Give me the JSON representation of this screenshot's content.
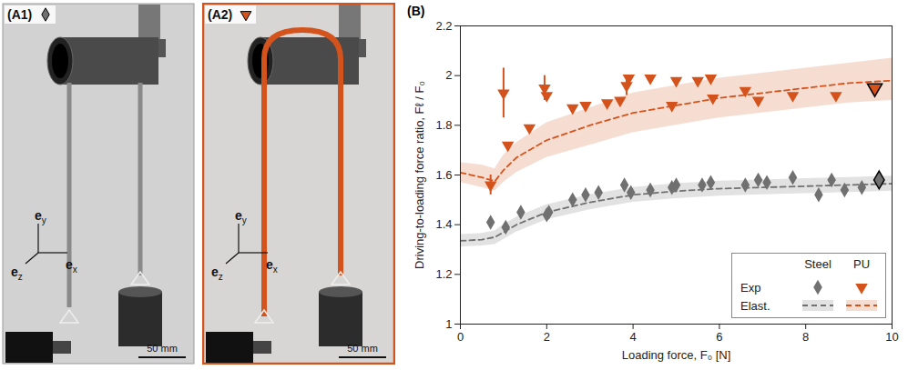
{
  "panels": [
    {
      "label": "(A1)",
      "series": "Steel",
      "axes": [
        "ey",
        "ez",
        "ex"
      ],
      "scale_bar": "50 mm"
    },
    {
      "label": "(A2)",
      "series": "PU",
      "axes": [
        "ey",
        "ez",
        "ex"
      ],
      "scale_bar": "50 mm"
    }
  ],
  "chart_data": {
    "type": "scatter",
    "panel_label": "(B)",
    "x_label": "Loading force, F₀ [N]",
    "y_label": "Driving-to-loading force ratio, Fℓ / F₀",
    "xlim": [
      0,
      10
    ],
    "xticks": [
      0,
      2,
      4,
      6,
      8,
      10
    ],
    "ylim": [
      1,
      2.2
    ],
    "yticks": [
      1,
      1.2,
      1.4,
      1.6,
      1.8,
      2,
      2.2
    ],
    "grid": false,
    "legend": "lower right",
    "row_labels": [
      "Exp",
      "Elast."
    ],
    "series": [
      {
        "name": "Steel",
        "color": "#707070",
        "marker": "diamond",
        "line_style": "dashed",
        "x": [
          0.7,
          1.05,
          1.4,
          2.0,
          2.05,
          2.6,
          2.9,
          3.2,
          3.8,
          3.95,
          4.4,
          4.9,
          5.0,
          5.6,
          5.8,
          6.6,
          6.9,
          7.1,
          7.7,
          8.3,
          8.6,
          8.9,
          9.3,
          9.7
        ],
        "values": [
          1.41,
          1.39,
          1.45,
          1.44,
          1.45,
          1.5,
          1.52,
          1.53,
          1.56,
          1.53,
          1.54,
          1.55,
          1.56,
          1.56,
          1.57,
          1.56,
          1.58,
          1.57,
          1.59,
          1.52,
          1.58,
          1.54,
          1.55,
          1.58
        ],
        "highlight_index": 23,
        "model": {
          "x": [
            0,
            0.5,
            0.8,
            1,
            1.3,
            2,
            3,
            4,
            5,
            6,
            7,
            8,
            9,
            10
          ],
          "values": [
            1.335,
            1.34,
            1.35,
            1.37,
            1.4,
            1.45,
            1.49,
            1.52,
            1.535,
            1.545,
            1.55,
            1.555,
            1.56,
            1.565
          ],
          "lower": [
            1.31,
            1.315,
            1.32,
            1.34,
            1.37,
            1.42,
            1.46,
            1.49,
            1.505,
            1.515,
            1.52,
            1.525,
            1.53,
            1.535
          ],
          "upper": [
            1.36,
            1.365,
            1.375,
            1.4,
            1.43,
            1.48,
            1.52,
            1.55,
            1.565,
            1.575,
            1.58,
            1.585,
            1.59,
            1.595
          ]
        }
      },
      {
        "name": "PU",
        "color": "#d4531c",
        "marker": "triangle-down",
        "line_style": "dashed",
        "x": [
          0.7,
          1.0,
          1.1,
          1.6,
          1.95,
          2.0,
          2.6,
          2.9,
          3.4,
          3.7,
          3.85,
          3.9,
          4.4,
          4.9,
          5.0,
          5.5,
          5.8,
          5.85,
          6.6,
          6.9,
          7.7,
          8.7,
          9.6
        ],
        "values": [
          1.56,
          1.93,
          1.72,
          1.79,
          1.95,
          1.92,
          1.87,
          1.88,
          1.89,
          1.9,
          1.96,
          1.99,
          1.99,
          1.88,
          1.98,
          1.98,
          1.99,
          1.91,
          1.94,
          1.9,
          1.92,
          1.92,
          1.95
        ],
        "errors": [
          0.04,
          0.1,
          null,
          null,
          0.05,
          null,
          null,
          null,
          null,
          null,
          0.04,
          null,
          null,
          null,
          null,
          null,
          null,
          null,
          null,
          null,
          null,
          null,
          null
        ],
        "highlight_index": 22,
        "model": {
          "x": [
            0,
            0.5,
            0.8,
            1,
            1.3,
            2,
            3,
            4,
            5,
            6,
            7,
            8,
            9,
            10
          ],
          "values": [
            1.61,
            1.59,
            1.575,
            1.62,
            1.67,
            1.74,
            1.8,
            1.85,
            1.88,
            1.91,
            1.93,
            1.95,
            1.97,
            1.98
          ],
          "lower": [
            1.57,
            1.55,
            1.535,
            1.57,
            1.61,
            1.67,
            1.72,
            1.77,
            1.8,
            1.83,
            1.85,
            1.87,
            1.89,
            1.9
          ],
          "upper": [
            1.65,
            1.64,
            1.625,
            1.68,
            1.73,
            1.81,
            1.87,
            1.93,
            1.96,
            1.99,
            2.01,
            2.03,
            2.05,
            2.07
          ]
        }
      }
    ]
  }
}
